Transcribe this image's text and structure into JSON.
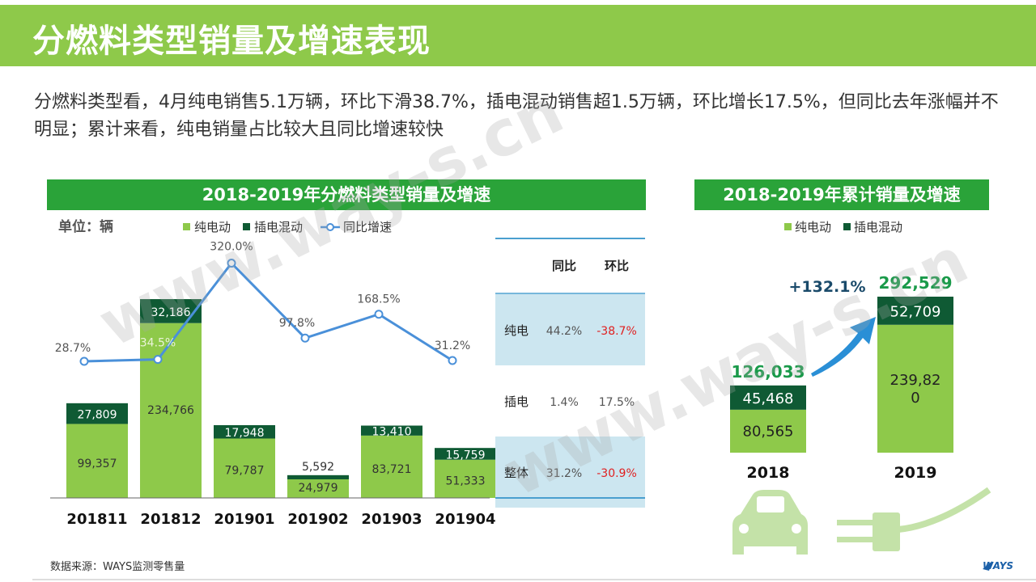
{
  "page": {
    "title": "分燃料类型销量及增速表现",
    "summary": "分燃料类型看，4月纯电销售5.1万辆，环比下滑38.7%，插电混动销售超1.5万辆，环比增长17.5%，但同比去年涨幅并不明显；累计来看，纯电销量占比较大且同比增速较快",
    "footer": "数据来源：WAYS监测零售量",
    "logo_text": "WAYS",
    "watermark": "www.way-s.cn"
  },
  "colors": {
    "title_bg": "#8ec94a",
    "banner_bg": "#2aa339",
    "bev": "#8ec94a",
    "phev": "#0f5a34",
    "line": "#4a90d9",
    "negative": "#e02020",
    "positive_label": "#1a9a4a",
    "table_band": "#cce6f0",
    "arrow": "#2a8fd6"
  },
  "chart_data": [
    {
      "type": "bar",
      "title": "2018-2019年分燃料类型销量及增速",
      "unit": "单位：辆",
      "categories": [
        "201811",
        "201812",
        "201901",
        "201902",
        "201903",
        "201904"
      ],
      "series": [
        {
          "name": "纯电动",
          "type": "stacked-bar",
          "values": [
            99357,
            234766,
            79787,
            24979,
            83721,
            51333
          ]
        },
        {
          "name": "插电混动",
          "type": "stacked-bar",
          "values": [
            27809,
            32186,
            17948,
            5592,
            13410,
            15759
          ]
        },
        {
          "name": "同比增速",
          "type": "line",
          "values": [
            28.7,
            34.5,
            320.0,
            97.8,
            168.5,
            31.2
          ],
          "labels": [
            "28.7%",
            "34.5%",
            "320.0%",
            "97.8%",
            "168.5%",
            "31.2%"
          ]
        }
      ],
      "legend": "top"
    },
    {
      "type": "table",
      "columns": [
        "",
        "同比",
        "环比"
      ],
      "rows": [
        {
          "label": "纯电",
          "yoy": "44.2%",
          "mom": "-38.7%",
          "highlight": true
        },
        {
          "label": "插电",
          "yoy": "1.4%",
          "mom": "17.5%",
          "highlight": false
        },
        {
          "label": "整体",
          "yoy": "31.2%",
          "mom": "-30.9%",
          "highlight": true
        }
      ]
    },
    {
      "type": "bar",
      "title": "2018-2019年累计销量及增速",
      "categories": [
        "2018",
        "2019"
      ],
      "series": [
        {
          "name": "纯电动",
          "values": [
            80565,
            239820
          ],
          "labels": [
            "80,565",
            "239,82\n0"
          ]
        },
        {
          "name": "插电混动",
          "values": [
            45468,
            52709
          ],
          "labels": [
            "45,468",
            "52,709"
          ]
        }
      ],
      "totals": [
        "126,033",
        "292,529"
      ],
      "growth_label": "+132.1%",
      "legend": "top"
    }
  ]
}
